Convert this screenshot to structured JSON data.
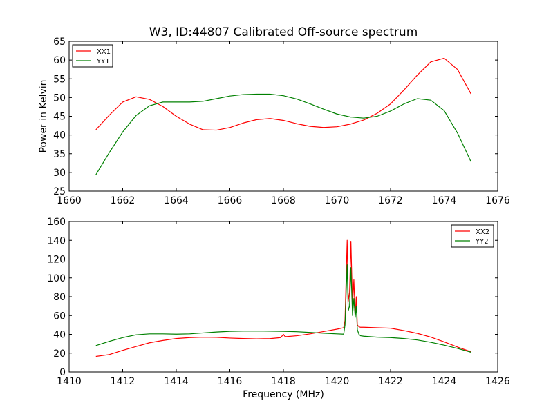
{
  "chart_data": [
    {
      "type": "line",
      "title": "W3, ID:44807 Calibrated Off-source spectrum",
      "xlabel": "",
      "ylabel": "Power in Kelvin",
      "xlim": [
        1660,
        1676
      ],
      "ylim": [
        25,
        65
      ],
      "xticks": [
        "1660",
        "1662",
        "1664",
        "1666",
        "1668",
        "1670",
        "1672",
        "1674",
        "1676"
      ],
      "yticks": [
        "25",
        "30",
        "35",
        "40",
        "45",
        "50",
        "55",
        "60",
        "65"
      ],
      "grid": false,
      "legend_position": "top-left",
      "series": [
        {
          "name": "XX1",
          "color": "#ff0000",
          "x": [
            1661.0,
            1661.5,
            1662.0,
            1662.5,
            1663.0,
            1663.5,
            1664.0,
            1664.5,
            1665.0,
            1665.5,
            1666.0,
            1666.5,
            1667.0,
            1667.5,
            1668.0,
            1668.5,
            1669.0,
            1669.5,
            1670.0,
            1670.5,
            1671.0,
            1671.5,
            1672.0,
            1672.5,
            1673.0,
            1673.5,
            1674.0,
            1674.5,
            1675.0
          ],
          "y": [
            41.4,
            45.3,
            48.8,
            50.2,
            49.5,
            47.6,
            45.0,
            42.9,
            41.4,
            41.3,
            42.0,
            43.2,
            44.1,
            44.4,
            43.9,
            43.0,
            42.3,
            42.0,
            42.2,
            42.9,
            44.0,
            45.8,
            48.3,
            52.0,
            56.0,
            59.5,
            60.5,
            57.5,
            51.0
          ]
        },
        {
          "name": "YY1",
          "color": "#008000",
          "x": [
            1661.0,
            1661.5,
            1662.0,
            1662.5,
            1663.0,
            1663.5,
            1664.0,
            1664.5,
            1665.0,
            1665.5,
            1666.0,
            1666.5,
            1667.0,
            1667.5,
            1668.0,
            1668.5,
            1669.0,
            1669.5,
            1670.0,
            1670.5,
            1671.0,
            1671.5,
            1672.0,
            1672.5,
            1673.0,
            1673.5,
            1674.0,
            1674.5,
            1675.0
          ],
          "y": [
            29.4,
            35.3,
            40.8,
            45.2,
            47.8,
            48.8,
            48.8,
            48.8,
            49.0,
            49.7,
            50.4,
            50.8,
            50.9,
            50.9,
            50.5,
            49.6,
            48.3,
            46.9,
            45.6,
            44.8,
            44.5,
            45.0,
            46.4,
            48.3,
            49.7,
            49.3,
            46.5,
            40.5,
            32.9
          ]
        }
      ]
    },
    {
      "type": "line",
      "title": "",
      "xlabel": "Frequency (MHz)",
      "ylabel": "",
      "xlim": [
        1410,
        1426
      ],
      "ylim": [
        0,
        160
      ],
      "xticks": [
        "1410",
        "1412",
        "1414",
        "1416",
        "1418",
        "1420",
        "1422",
        "1424",
        "1426"
      ],
      "yticks": [
        "0",
        "20",
        "40",
        "60",
        "80",
        "100",
        "120",
        "140",
        "160"
      ],
      "grid": false,
      "legend_position": "top-right",
      "series": [
        {
          "name": "XX2",
          "color": "#ff0000",
          "x": [
            1411.0,
            1411.5,
            1412.0,
            1412.5,
            1413.0,
            1413.5,
            1414.0,
            1414.5,
            1415.0,
            1415.5,
            1416.0,
            1416.5,
            1417.0,
            1417.5,
            1417.9,
            1418.0,
            1418.05,
            1418.1,
            1418.5,
            1419.0,
            1419.5,
            1420.0,
            1420.25,
            1420.3,
            1420.38,
            1420.42,
            1420.47,
            1420.52,
            1420.58,
            1420.63,
            1420.68,
            1420.72,
            1420.76,
            1420.82,
            1420.88,
            1421.0,
            1421.5,
            1422.0,
            1422.5,
            1423.0,
            1423.5,
            1424.0,
            1424.5,
            1425.0
          ],
          "y": [
            16.5,
            18.5,
            23.0,
            27.0,
            31.0,
            33.5,
            35.5,
            36.5,
            37.0,
            36.8,
            36.0,
            35.5,
            35.2,
            35.4,
            36.5,
            40.0,
            38.0,
            37.5,
            38.5,
            40.5,
            43.0,
            45.5,
            47.0,
            55.0,
            140.0,
            75.0,
            85.0,
            139.0,
            70.0,
            98.0,
            60.0,
            80.0,
            50.0,
            48.0,
            47.5,
            47.5,
            47.0,
            46.5,
            44.0,
            41.0,
            37.0,
            32.0,
            26.5,
            21.5
          ]
        },
        {
          "name": "YY2",
          "color": "#008000",
          "x": [
            1411.0,
            1411.5,
            1412.0,
            1412.5,
            1413.0,
            1413.5,
            1414.0,
            1414.5,
            1415.0,
            1415.5,
            1416.0,
            1416.5,
            1417.0,
            1417.5,
            1418.0,
            1418.5,
            1419.0,
            1419.5,
            1420.0,
            1420.25,
            1420.3,
            1420.38,
            1420.42,
            1420.47,
            1420.52,
            1420.58,
            1420.63,
            1420.68,
            1420.72,
            1420.76,
            1420.82,
            1420.88,
            1421.0,
            1421.5,
            1422.0,
            1422.5,
            1423.0,
            1423.5,
            1424.0,
            1424.5,
            1425.0
          ],
          "y": [
            28.0,
            32.5,
            36.5,
            39.5,
            40.5,
            40.5,
            40.2,
            40.5,
            41.5,
            42.5,
            43.2,
            43.5,
            43.5,
            43.4,
            43.2,
            42.8,
            42.0,
            41.2,
            40.5,
            40.2,
            50.0,
            114.0,
            65.0,
            70.0,
            111.0,
            60.0,
            78.0,
            58.0,
            70.0,
            45.0,
            40.0,
            38.5,
            38.0,
            37.0,
            36.5,
            35.5,
            34.0,
            31.5,
            28.5,
            25.0,
            21.0
          ]
        }
      ]
    }
  ]
}
